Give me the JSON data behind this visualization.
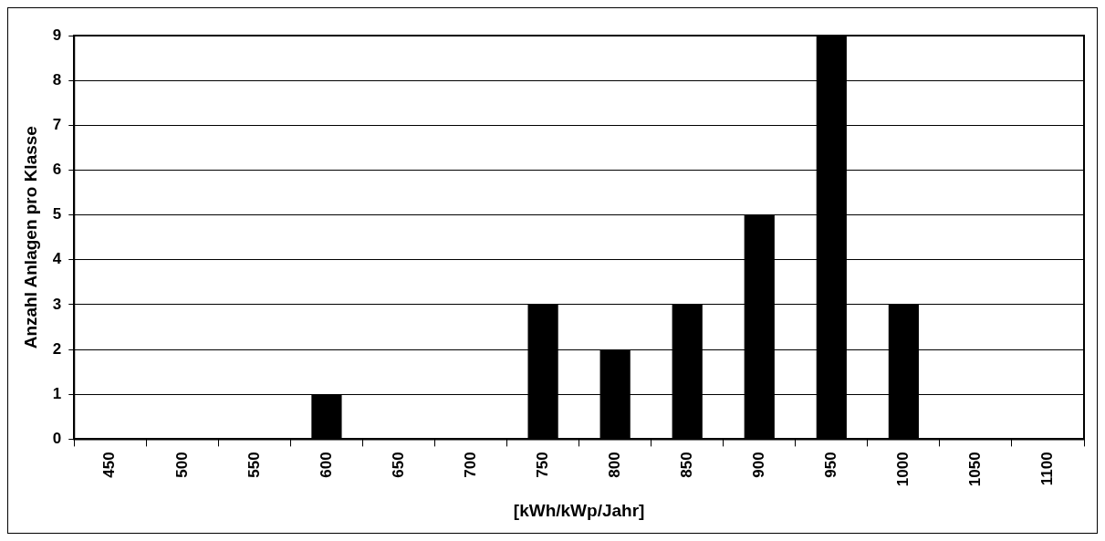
{
  "chart_data": {
    "type": "bar",
    "ylabel": "Anzahl Anlagen pro Klasse",
    "xlabel": "[kWh/kWp/Jahr]",
    "categories": [
      "450",
      "500",
      "550",
      "600",
      "650",
      "700",
      "750",
      "800",
      "850",
      "900",
      "950",
      "1000",
      "1050",
      "1100"
    ],
    "values": [
      0,
      0,
      0,
      1,
      0,
      0,
      3,
      2,
      3,
      5,
      9,
      3,
      0,
      0
    ],
    "color": "#000000",
    "ylim": [
      0,
      9
    ],
    "yticks": [
      0,
      1,
      2,
      3,
      4,
      5,
      6,
      7,
      8,
      9
    ],
    "grid": "y",
    "legend": false
  }
}
